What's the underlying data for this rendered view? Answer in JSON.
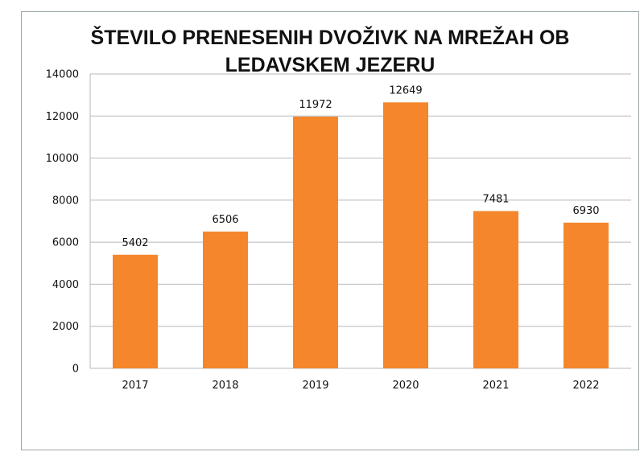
{
  "chart_data": {
    "type": "bar",
    "title_lines": [
      "ŠTEVILO PRENESENIH DVOŽIVK NA MREŽAH OB",
      "LEDAVSKEM JEZERU"
    ],
    "categories": [
      "2017",
      "2018",
      "2019",
      "2020",
      "2021",
      "2022"
    ],
    "values": [
      5402,
      6506,
      11972,
      12649,
      7481,
      6930
    ],
    "data_labels": [
      "5402",
      "6506",
      "11972",
      "12649",
      "7481",
      "6930"
    ],
    "yticks": [
      "0",
      "2000",
      "4000",
      "6000",
      "8000",
      "10000",
      "12000",
      "14000"
    ],
    "ylim": [
      0,
      14000
    ],
    "grid": true,
    "legend": false,
    "bar_color": "#f5862b"
  }
}
